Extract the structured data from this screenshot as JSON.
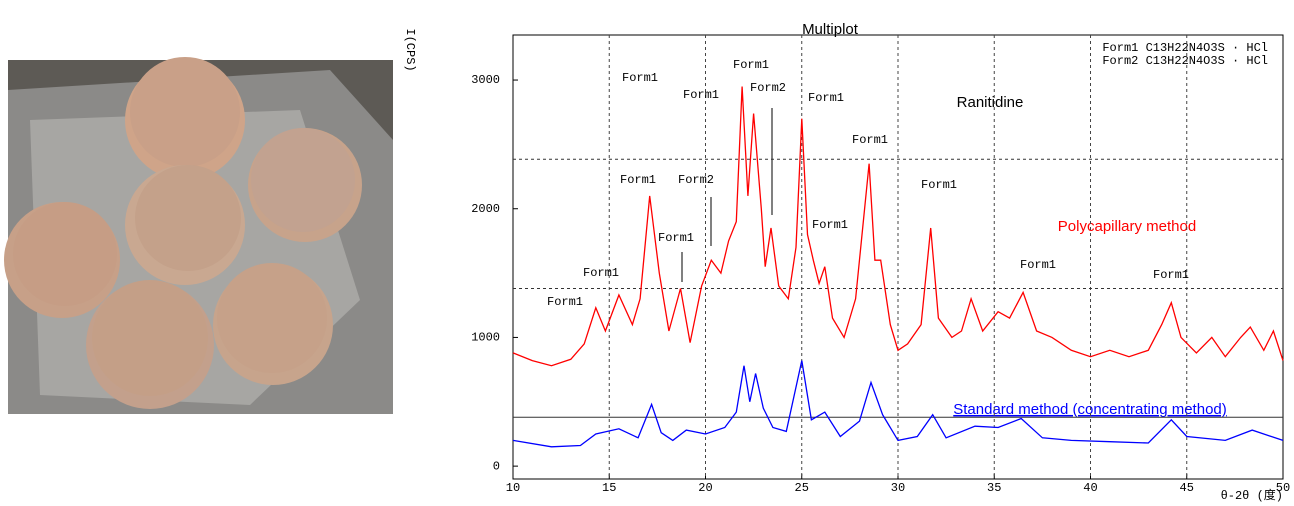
{
  "chart_data": {
    "type": "line",
    "title": "Multiplot",
    "subtitle": "Ranitidine",
    "y_label": "I(CPS)",
    "x_label": "θ-2θ (度)",
    "legend_lines": [
      "Form1  C13H22N4O3S · HCl",
      "Form2  C13H22N4O3S · HCl"
    ],
    "xlim": [
      10,
      50
    ],
    "ylim": [
      -100,
      3350
    ],
    "xticks": [
      10,
      15,
      20,
      25,
      30,
      35,
      40,
      45,
      50
    ],
    "yticks": [
      0,
      1000,
      2000,
      3000
    ],
    "grid": true,
    "reference_lines": [
      {
        "value": 1380,
        "style": "dashed"
      },
      {
        "value": 2385,
        "style": "dashed"
      },
      {
        "value": 380,
        "style": "solid"
      }
    ],
    "annotations": [
      "Form1",
      "Form1",
      "Form1",
      "Form1",
      "Form1",
      "Form2",
      "Form1",
      "Form1",
      "Form2",
      "Form1",
      "Form1",
      "Form1",
      "Form1",
      "Form1",
      "Form1"
    ],
    "series": [
      {
        "name": "Polycapillary method",
        "color": "#ff0000",
        "x": [
          10,
          11,
          12,
          13,
          13.7,
          14.3,
          14.8,
          15.5,
          16.2,
          16.6,
          17.1,
          17.6,
          18.1,
          18.7,
          19.2,
          19.8,
          20.3,
          20.8,
          21.2,
          21.6,
          21.9,
          22.2,
          22.5,
          22.9,
          23.1,
          23.4,
          23.8,
          24.3,
          24.7,
          25.0,
          25.3,
          25.6,
          25.9,
          26.2,
          26.6,
          27.2,
          27.8,
          28.5,
          28.8,
          29.1,
          29.6,
          30.0,
          30.5,
          31.2,
          31.7,
          32.1,
          32.8,
          33.3,
          33.8,
          34.4,
          35.2,
          35.8,
          36.5,
          37.2,
          38.0,
          39.0,
          40.0,
          41.0,
          42.0,
          43.0,
          43.7,
          44.2,
          44.7,
          45.5,
          46.3,
          47.0,
          47.8,
          48.3,
          49.0,
          49.5,
          50
        ],
        "values": [
          880,
          820,
          780,
          830,
          950,
          1230,
          1050,
          1330,
          1100,
          1300,
          2100,
          1500,
          1050,
          1380,
          960,
          1400,
          1600,
          1500,
          1750,
          1900,
          2950,
          2100,
          2740,
          2000,
          1550,
          1850,
          1400,
          1300,
          1700,
          2700,
          1800,
          1600,
          1420,
          1550,
          1150,
          1000,
          1300,
          2350,
          1600,
          1600,
          1100,
          900,
          950,
          1100,
          1850,
          1150,
          1000,
          1050,
          1300,
          1050,
          1200,
          1150,
          1350,
          1050,
          1000,
          900,
          850,
          900,
          850,
          900,
          1100,
          1270,
          1000,
          880,
          1000,
          850,
          1000,
          1080,
          900,
          1050,
          820
        ]
      },
      {
        "name": "Standard method (concentrating method)",
        "color": "#0000ff",
        "x": [
          10,
          12,
          13.5,
          14.3,
          15.5,
          16.5,
          17.2,
          17.7,
          18.3,
          19,
          20,
          21,
          21.6,
          22,
          22.3,
          22.6,
          23,
          23.5,
          24.2,
          25,
          25.5,
          26.2,
          27,
          28,
          28.6,
          29.2,
          30,
          31,
          31.8,
          32.5,
          34,
          35.2,
          36.4,
          37.5,
          39,
          41,
          43,
          44.2,
          45,
          47,
          48.4,
          50
        ],
        "values": [
          200,
          150,
          160,
          250,
          290,
          220,
          480,
          260,
          200,
          280,
          250,
          300,
          420,
          780,
          500,
          720,
          450,
          300,
          270,
          820,
          360,
          420,
          230,
          350,
          650,
          400,
          200,
          230,
          400,
          220,
          310,
          300,
          370,
          220,
          200,
          190,
          180,
          360,
          230,
          200,
          280,
          200
        ]
      }
    ]
  }
}
